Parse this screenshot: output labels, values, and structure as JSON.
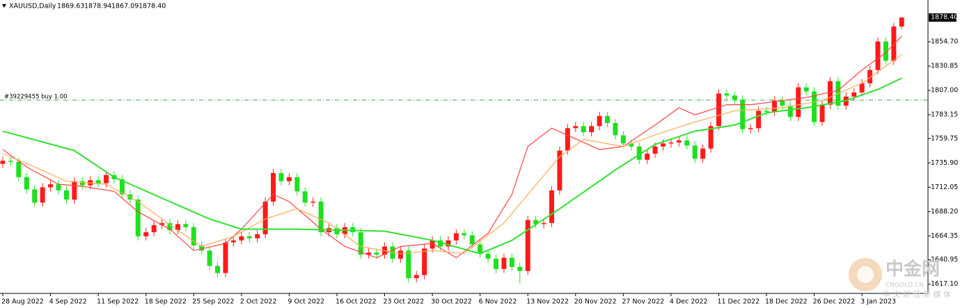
{
  "chart_data": {
    "type": "candlestick",
    "title": "XAUUSD,Daily",
    "header_values": [
      "1869.63",
      "1878.94",
      "1867.09",
      "1878.40"
    ],
    "xlim": [
      -0.35,
      116.3
    ],
    "ylim": [
      1609.4,
      1895.6
    ],
    "yticks": [
      {
        "value": 1854.7,
        "label": "1854.70"
      },
      {
        "value": 1830.85,
        "label": "1830.85"
      },
      {
        "value": 1807,
        "label": "1807.00"
      },
      {
        "value": 1783.15,
        "label": "1783.15"
      },
      {
        "value": 1759.75,
        "label": "1759.75"
      },
      {
        "value": 1735.9,
        "label": "1735.90"
      },
      {
        "value": 1712.05,
        "label": "1712.05"
      },
      {
        "value": 1688.2,
        "label": "1688.20"
      },
      {
        "value": 1664.35,
        "label": "1664.35"
      },
      {
        "value": 1640.95,
        "label": "1640.95"
      },
      {
        "value": 1617.1,
        "label": "1617.10"
      }
    ],
    "xticks": [
      {
        "value": 0,
        "label": "28 Aug 2022"
      },
      {
        "value": 6,
        "label": "4 Sep 2022"
      },
      {
        "value": 12,
        "label": "11 Sep 2022"
      },
      {
        "value": 18,
        "label": "18 Sep 2022"
      },
      {
        "value": 24,
        "label": "25 Sep 2022"
      },
      {
        "value": 30,
        "label": "2 Oct 2022"
      },
      {
        "value": 36,
        "label": "9 Oct 2022"
      },
      {
        "value": 42,
        "label": "16 Oct 2022"
      },
      {
        "value": 48,
        "label": "23 Oct 2022"
      },
      {
        "value": 54,
        "label": "30 Oct 2022"
      },
      {
        "value": 60,
        "label": "6 Nov 2022"
      },
      {
        "value": 66,
        "label": "13 Nov 2022"
      },
      {
        "value": 72,
        "label": "20 Nov 2022"
      },
      {
        "value": 78,
        "label": "27 Nov 2022"
      },
      {
        "value": 84,
        "label": "4 Dec 2022"
      },
      {
        "value": 90,
        "label": "11 Dec 2022"
      },
      {
        "value": 96,
        "label": "18 Dec 2022"
      },
      {
        "value": 102,
        "label": "26 Dec 2022"
      },
      {
        "value": 108,
        "label": "3 Jan 2023"
      }
    ],
    "price_label": {
      "value": 1878.4,
      "label": "1878.40"
    },
    "order_line": {
      "value": 1797.5,
      "label": "#39229455 buy 1.00",
      "color": "#2ea84a"
    },
    "candles": {
      "up_color": "#ff1a1a",
      "down_color": "#1ee01e",
      "open": [
        1735,
        1738,
        1737,
        1722,
        1710,
        1697,
        1712,
        1715,
        1709,
        1700,
        1718,
        1714,
        1719,
        1716,
        1724,
        1720,
        1705,
        1700,
        1664,
        1668,
        1675,
        1677,
        1670,
        1676,
        1673,
        1655,
        1650,
        1635,
        1628,
        1658,
        1660,
        1664,
        1662,
        1666,
        1698,
        1726,
        1718,
        1722,
        1708,
        1697,
        1698,
        1668,
        1672,
        1666,
        1673,
        1668,
        1646,
        1648,
        1646,
        1654,
        1642,
        1650,
        1623,
        1626,
        1652,
        1660,
        1654,
        1660,
        1667,
        1665,
        1656,
        1647,
        1642,
        1632,
        1643,
        1634,
        1630,
        1680,
        1676,
        1677,
        1709,
        1748,
        1770,
        1772,
        1766,
        1772,
        1782,
        1775,
        1763,
        1755,
        1752,
        1739,
        1745,
        1752,
        1755,
        1756,
        1758,
        1753,
        1740,
        1750,
        1772,
        1804,
        1802,
        1798,
        1769,
        1770,
        1787,
        1786,
        1797,
        1792,
        1781,
        1810,
        1806,
        1776,
        1793,
        1816,
        1792,
        1801,
        1805,
        1814,
        1827,
        1855,
        1836,
        1869.63
      ],
      "high": [
        1742,
        1742,
        1741,
        1726,
        1714,
        1716,
        1719,
        1719,
        1713,
        1722,
        1722,
        1723,
        1723,
        1728,
        1728,
        1724,
        1709,
        1704,
        1672,
        1679,
        1681,
        1681,
        1680,
        1680,
        1677,
        1659,
        1654,
        1639,
        1662,
        1664,
        1668,
        1668,
        1670,
        1702,
        1730,
        1730,
        1726,
        1726,
        1712,
        1702,
        1702,
        1676,
        1676,
        1677,
        1677,
        1672,
        1652,
        1652,
        1658,
        1658,
        1654,
        1654,
        1630,
        1656,
        1664,
        1664,
        1664,
        1671,
        1671,
        1669,
        1660,
        1651,
        1646,
        1647,
        1647,
        1638,
        1684,
        1684,
        1681,
        1713,
        1752,
        1774,
        1776,
        1776,
        1776,
        1786,
        1786,
        1779,
        1767,
        1759,
        1756,
        1749,
        1756,
        1759,
        1760,
        1762,
        1762,
        1757,
        1754,
        1776,
        1808,
        1808,
        1806,
        1802,
        1774,
        1791,
        1791,
        1801,
        1801,
        1796,
        1814,
        1814,
        1810,
        1797,
        1820,
        1820,
        1805,
        1809,
        1818,
        1831,
        1859,
        1859,
        1873,
        1878.94
      ],
      "low": [
        1731,
        1733,
        1718,
        1706,
        1693,
        1693,
        1708,
        1705,
        1696,
        1696,
        1710,
        1710,
        1712,
        1712,
        1716,
        1701,
        1696,
        1660,
        1660,
        1664,
        1671,
        1666,
        1666,
        1669,
        1651,
        1646,
        1631,
        1624,
        1624,
        1654,
        1656,
        1658,
        1658,
        1662,
        1694,
        1714,
        1714,
        1704,
        1693,
        1693,
        1664,
        1664,
        1662,
        1662,
        1664,
        1642,
        1642,
        1642,
        1642,
        1638,
        1638,
        1619,
        1619,
        1622,
        1648,
        1650,
        1650,
        1656,
        1661,
        1652,
        1643,
        1638,
        1628,
        1628,
        1630,
        1618,
        1626,
        1672,
        1672,
        1673,
        1705,
        1744,
        1766,
        1762,
        1762,
        1768,
        1771,
        1759,
        1751,
        1748,
        1735,
        1735,
        1741,
        1748,
        1751,
        1752,
        1749,
        1736,
        1736,
        1746,
        1768,
        1798,
        1794,
        1765,
        1765,
        1766,
        1782,
        1782,
        1788,
        1777,
        1777,
        1802,
        1772,
        1772,
        1789,
        1788,
        1788,
        1797,
        1801,
        1810,
        1823,
        1832,
        1832,
        1867.09
      ],
      "close": [
        1738,
        1737,
        1722,
        1710,
        1697,
        1712,
        1715,
        1709,
        1700,
        1718,
        1714,
        1719,
        1716,
        1724,
        1720,
        1705,
        1700,
        1664,
        1668,
        1675,
        1677,
        1670,
        1676,
        1673,
        1655,
        1650,
        1635,
        1628,
        1658,
        1660,
        1664,
        1662,
        1666,
        1698,
        1726,
        1718,
        1722,
        1708,
        1697,
        1698,
        1668,
        1672,
        1666,
        1673,
        1668,
        1646,
        1648,
        1646,
        1654,
        1642,
        1650,
        1623,
        1626,
        1652,
        1660,
        1654,
        1660,
        1667,
        1665,
        1656,
        1647,
        1642,
        1632,
        1643,
        1634,
        1630,
        1680,
        1676,
        1677,
        1709,
        1748,
        1770,
        1772,
        1766,
        1772,
        1782,
        1775,
        1763,
        1755,
        1752,
        1739,
        1745,
        1752,
        1755,
        1756,
        1758,
        1753,
        1740,
        1750,
        1772,
        1804,
        1802,
        1798,
        1769,
        1770,
        1787,
        1786,
        1797,
        1792,
        1781,
        1810,
        1806,
        1776,
        1793,
        1816,
        1792,
        1801,
        1805,
        1814,
        1827,
        1855,
        1836,
        1869.63,
        1878.4
      ]
    },
    "lines": [
      {
        "color": "#ff4040",
        "x": [
          0,
          3,
          7,
          10,
          14,
          17,
          21,
          24,
          28,
          30,
          34,
          36,
          40,
          43,
          47,
          50,
          54,
          57,
          61,
          64,
          66,
          69,
          71,
          75,
          78,
          82,
          85,
          87,
          91,
          94,
          98,
          101,
          105,
          108,
          111,
          113
        ],
        "values": [
          1749,
          1732,
          1715,
          1713,
          1708,
          1688,
          1671,
          1650,
          1657,
          1671,
          1705,
          1698,
          1671,
          1654,
          1643,
          1654,
          1657,
          1643,
          1667,
          1705,
          1752,
          1770,
          1763,
          1749,
          1752,
          1773,
          1790,
          1783,
          1793,
          1793,
          1797,
          1800,
          1807,
          1827,
          1844,
          1860
        ]
      },
      {
        "color": "#ffaa55",
        "x": [
          0,
          4,
          8,
          13,
          17,
          22,
          25,
          29,
          33,
          37,
          41,
          45,
          50,
          54,
          58,
          63,
          66,
          70,
          73,
          78,
          83,
          87,
          92,
          98,
          103,
          108,
          113
        ],
        "values": [
          1745,
          1732,
          1718,
          1715,
          1698,
          1670,
          1654,
          1664,
          1681,
          1691,
          1677,
          1654,
          1647,
          1650,
          1647,
          1677,
          1705,
          1742,
          1759,
          1752,
          1766,
          1776,
          1787,
          1790,
          1797,
          1814,
          1842
        ]
      },
      {
        "color": "#2fe02f",
        "x": [
          0,
          9,
          14,
          21,
          26,
          30,
          37,
          48,
          54,
          60,
          64,
          70,
          77,
          82,
          87,
          92,
          96,
          101,
          106,
          110,
          113
        ],
        "values": [
          1767,
          1748,
          1722,
          1698,
          1681,
          1671,
          1671,
          1669,
          1660,
          1647,
          1660,
          1691,
          1729,
          1754,
          1767,
          1773,
          1785,
          1790,
          1797,
          1808,
          1819
        ]
      }
    ],
    "watermark": {
      "brand": "中金网",
      "site": "CNGOLD.CN",
      "slogan": "中 文 财 经 新 媒 体"
    }
  }
}
